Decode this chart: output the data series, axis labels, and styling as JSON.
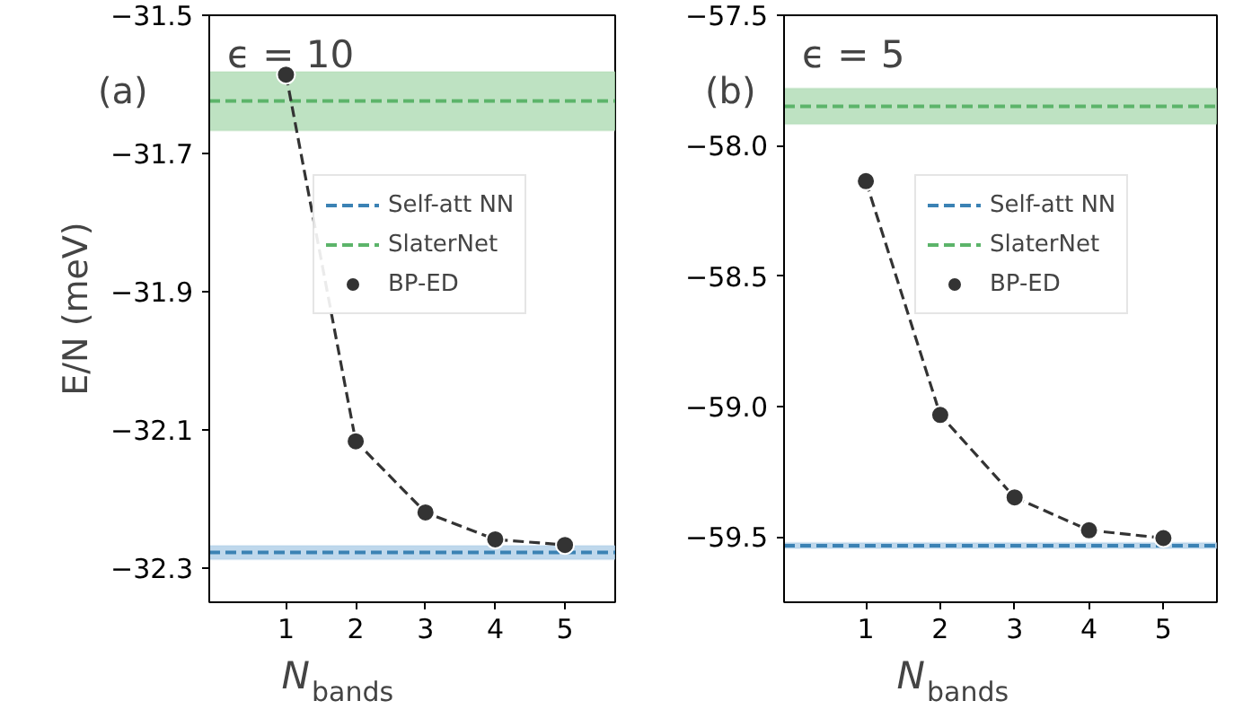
{
  "chart_data": [
    {
      "type": "scatter",
      "annotations": [
        "(a)",
        "ϵ = 10"
      ],
      "xlabel": "N$_{bands}$",
      "ylabel": "E/N (meV)",
      "x": [
        1,
        2,
        3,
        4,
        5
      ],
      "xlim": [
        -0.1,
        5.72
      ],
      "xticks": [
        1,
        2,
        3,
        4,
        5
      ],
      "ylim": [
        -32.35,
        -31.5
      ],
      "yticks": [
        {
          "value": -31.5,
          "label": "−31.5"
        },
        {
          "value": -31.7,
          "label": "−31.7"
        },
        {
          "value": -31.9,
          "label": "−31.9"
        },
        {
          "value": -32.1,
          "label": "−32.1"
        },
        {
          "value": -32.3,
          "label": "−32.3"
        }
      ],
      "series": [
        {
          "type": "line",
          "color": "#333333",
          "line_style": "dashed",
          "marker": "none",
          "values": [
            -31.586,
            -32.117,
            -32.22,
            -32.259,
            -32.267
          ]
        },
        {
          "type": "scatter",
          "name": "BP-ED",
          "color": "#333333",
          "marker": "circle",
          "values": [
            -31.586,
            -32.117,
            -32.22,
            -32.259,
            -32.267
          ]
        }
      ],
      "ref_lines": [
        {
          "axis": "y",
          "value": -32.278,
          "label": "Self-att NN",
          "color": "#3b82b4",
          "line_style": "dashed"
        },
        {
          "axis": "y",
          "value": -31.624,
          "label": "SlaterNet",
          "color": "#5cb46a",
          "line_style": "dashed"
        }
      ],
      "bands": [
        {
          "axis": "y",
          "from": -32.288,
          "to": -32.268,
          "color": "#a9cbe6"
        },
        {
          "axis": "y",
          "from": -31.667,
          "to": -31.582,
          "color": "#a8d8ad"
        }
      ],
      "legend": "top right",
      "grid": false
    },
    {
      "type": "scatter",
      "annotations": [
        "(b)",
        "ϵ = 5"
      ],
      "xlabel": "N$_{bands}$",
      "x": [
        1,
        2,
        3,
        4,
        5
      ],
      "xlim": [
        -0.1,
        5.72
      ],
      "xticks": [
        1,
        2,
        3,
        4,
        5
      ],
      "ylim": [
        -59.75,
        -57.5
      ],
      "yticks": [
        {
          "value": -57.5,
          "label": "−57.5"
        },
        {
          "value": -58.0,
          "label": "−58.0"
        },
        {
          "value": -58.5,
          "label": "−58.5"
        },
        {
          "value": -59.0,
          "label": "−59.0"
        },
        {
          "value": -59.5,
          "label": "−59.5"
        }
      ],
      "series": [
        {
          "type": "line",
          "color": "#333333",
          "line_style": "dashed",
          "marker": "none",
          "values": [
            -58.136,
            -59.032,
            -59.348,
            -59.474,
            -59.504
          ]
        },
        {
          "type": "scatter",
          "name": "BP-ED",
          "color": "#333333",
          "marker": "circle",
          "values": [
            -58.136,
            -59.032,
            -59.348,
            -59.474,
            -59.504
          ]
        }
      ],
      "ref_lines": [
        {
          "axis": "y",
          "value": -59.533,
          "label": "Self-att NN",
          "color": "#3b82b4",
          "line_style": "dashed"
        },
        {
          "axis": "y",
          "value": -57.849,
          "label": "SlaterNet",
          "color": "#5cb46a",
          "line_style": "dashed"
        }
      ],
      "bands": [
        {
          "axis": "y",
          "from": -59.544,
          "to": -59.522,
          "color": "#a9cbe6"
        },
        {
          "axis": "y",
          "from": -57.917,
          "to": -57.78,
          "color": "#a8d8ad"
        }
      ],
      "legend": "top right",
      "grid": false
    }
  ]
}
